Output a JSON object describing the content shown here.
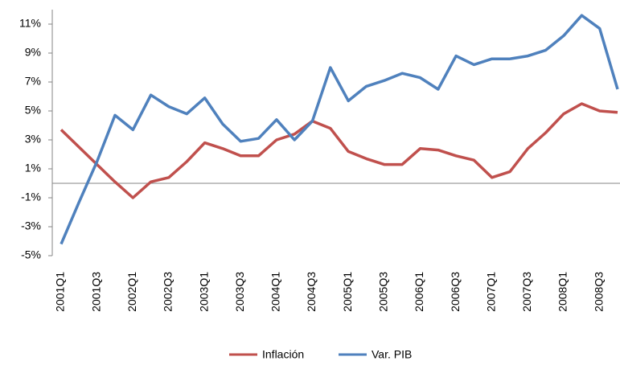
{
  "chart_data": {
    "type": "line",
    "categories": [
      "2001Q1",
      null,
      "2001Q3",
      null,
      "2002Q1",
      null,
      "2002Q3",
      null,
      "2003Q1",
      null,
      "2003Q3",
      null,
      "2004Q1",
      null,
      "2004Q3",
      null,
      "2005Q1",
      null,
      "2005Q3",
      null,
      "2006Q1",
      null,
      "2006Q3",
      null,
      "2007Q1",
      null,
      "2007Q3",
      null,
      "2008Q1",
      null,
      "2008Q3",
      null
    ],
    "series": [
      {
        "name": "Inflación",
        "color": "#c0504d",
        "values": [
          3.7,
          2.5,
          1.3,
          0.1,
          -1.0,
          0.1,
          0.4,
          1.5,
          2.8,
          2.4,
          1.9,
          1.9,
          3.0,
          3.4,
          4.3,
          3.8,
          2.2,
          1.7,
          1.3,
          1.3,
          2.4,
          2.3,
          1.9,
          1.6,
          0.4,
          0.8,
          2.4,
          3.5,
          4.8,
          5.5,
          5.0,
          4.9
        ]
      },
      {
        "name": "Var. PIB",
        "color": "#4f81bd",
        "values": [
          -4.2,
          -1.3,
          1.5,
          4.7,
          3.7,
          6.1,
          5.3,
          4.8,
          5.9,
          4.1,
          2.9,
          3.1,
          4.4,
          3.0,
          4.3,
          8.0,
          5.7,
          6.7,
          7.1,
          7.6,
          7.3,
          6.5,
          8.8,
          8.2,
          8.6,
          8.6,
          8.8,
          9.2,
          10.2,
          11.6,
          10.7,
          6.5
        ]
      }
    ],
    "ylim": [
      -5,
      12
    ],
    "yticks": [
      {
        "value": -5,
        "label": "-5%"
      },
      {
        "value": -3,
        "label": "-3%"
      },
      {
        "value": -1,
        "label": "-1%"
      },
      {
        "value": 1,
        "label": "1%"
      },
      {
        "value": 3,
        "label": "3%"
      },
      {
        "value": 5,
        "label": "5%"
      },
      {
        "value": 7,
        "label": "7%"
      },
      {
        "value": 9,
        "label": "9%"
      },
      {
        "value": 11,
        "label": "11%"
      }
    ],
    "grid": false,
    "legend": "bottom"
  }
}
